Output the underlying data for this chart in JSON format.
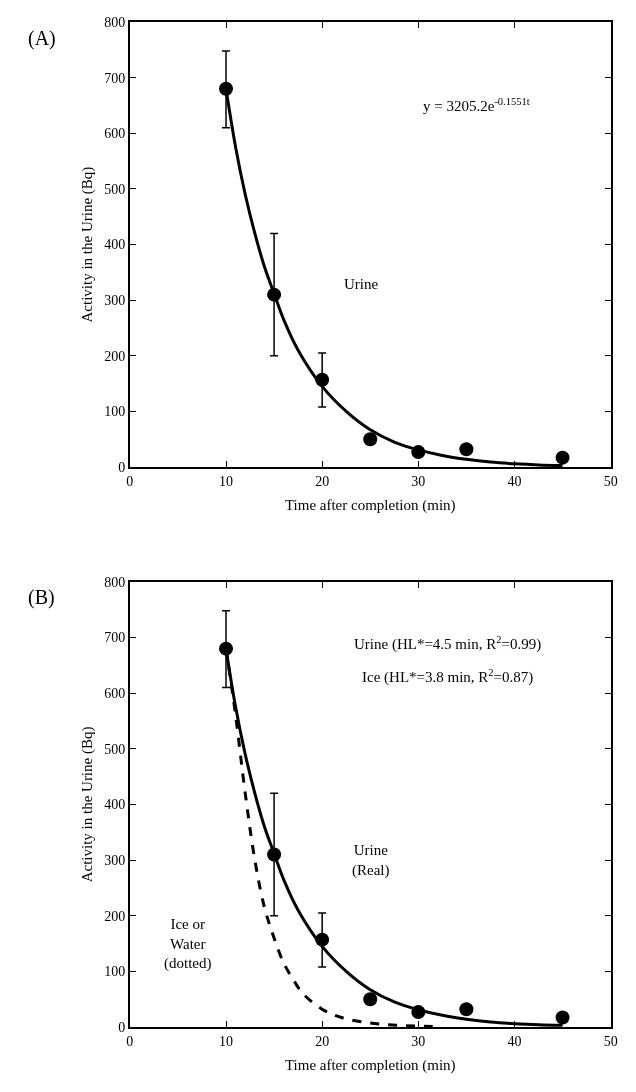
{
  "chart_data": [
    {
      "type": "scatter",
      "xlabel": "Time after completion (min)",
      "ylabel": "Activity in the Urine (Bq)",
      "xlim": [
        0,
        50
      ],
      "xticks": [
        0,
        10,
        20,
        30,
        40,
        50
      ],
      "ylim": [
        0,
        800
      ],
      "yticks": [
        0,
        100,
        200,
        300,
        400,
        500,
        600,
        700,
        800
      ],
      "grid": false,
      "legend": false,
      "annotations": [
        "(A)",
        "y = 3205.2e$^{-0.1551t}$",
        "Urine"
      ],
      "series": [
        {
          "type": "scatter",
          "color": "#000000",
          "marker": "circle",
          "x": [
            10,
            15,
            20,
            25,
            30,
            35,
            45
          ],
          "values": [
            680,
            310,
            157,
            50,
            27,
            32,
            17
          ],
          "errors": [
            [
              610,
              748
            ],
            [
              200,
              420
            ],
            [
              108,
              205
            ],
            null,
            null,
            null,
            null
          ]
        },
        {
          "type": "line",
          "color": "#000000",
          "line_style": "solid",
          "x": [
            10,
            11,
            12,
            13,
            14,
            15,
            16,
            17.5,
            20,
            22.5,
            25,
            27.5,
            30,
            32.5,
            35,
            37.5,
            40,
            42.5,
            45
          ],
          "values": [
            680,
            575,
            490,
            420,
            360,
            312,
            265,
            210,
            145,
            100,
            67,
            45,
            31,
            21,
            14,
            9,
            6,
            4,
            3
          ]
        }
      ]
    },
    {
      "type": "scatter",
      "xlabel": "Time after completion (min)",
      "ylabel": "Activity in the Urine (Bq)",
      "xlim": [
        0,
        50
      ],
      "xticks": [
        0,
        10,
        20,
        30,
        40,
        50
      ],
      "ylim": [
        0,
        800
      ],
      "yticks": [
        0,
        100,
        200,
        300,
        400,
        500,
        600,
        700,
        800
      ],
      "grid": false,
      "legend": false,
      "annotations": [
        "(B)",
        "Urine (HL*=4.5 min, R$^{2}$=0.99)",
        "Ice (HL*=3.8 min, R$^{2}$=0.87)",
        "Urine\n(Real)",
        "Ice or\nWater\n(dotted)"
      ],
      "series": [
        {
          "type": "scatter",
          "color": "#000000",
          "marker": "circle",
          "x": [
            10,
            15,
            20,
            25,
            30,
            35,
            45
          ],
          "values": [
            680,
            310,
            157,
            50,
            27,
            32,
            17
          ],
          "errors": [
            [
              610,
              748
            ],
            [
              200,
              420
            ],
            [
              108,
              205
            ],
            null,
            null,
            null,
            null
          ]
        },
        {
          "type": "line",
          "color": "#000000",
          "line_style": "solid",
          "x": [
            10,
            11,
            12,
            13,
            14,
            15,
            16,
            17.5,
            20,
            22.5,
            25,
            27.5,
            30,
            32.5,
            35,
            37.5,
            40,
            42.5,
            45
          ],
          "values": [
            680,
            575,
            490,
            420,
            360,
            312,
            265,
            210,
            145,
            100,
            67,
            45,
            31,
            21,
            14,
            9,
            6,
            4,
            3
          ]
        },
        {
          "type": "line",
          "color": "#000000",
          "line_style": "dashed",
          "x": [
            10,
            11,
            12,
            13,
            14,
            15,
            16,
            17,
            18,
            20,
            22,
            25,
            28,
            31.5
          ],
          "values": [
            680,
            560,
            420,
            300,
            215,
            160,
            115,
            85,
            60,
            32,
            17,
            7,
            3,
            1
          ]
        }
      ]
    }
  ]
}
